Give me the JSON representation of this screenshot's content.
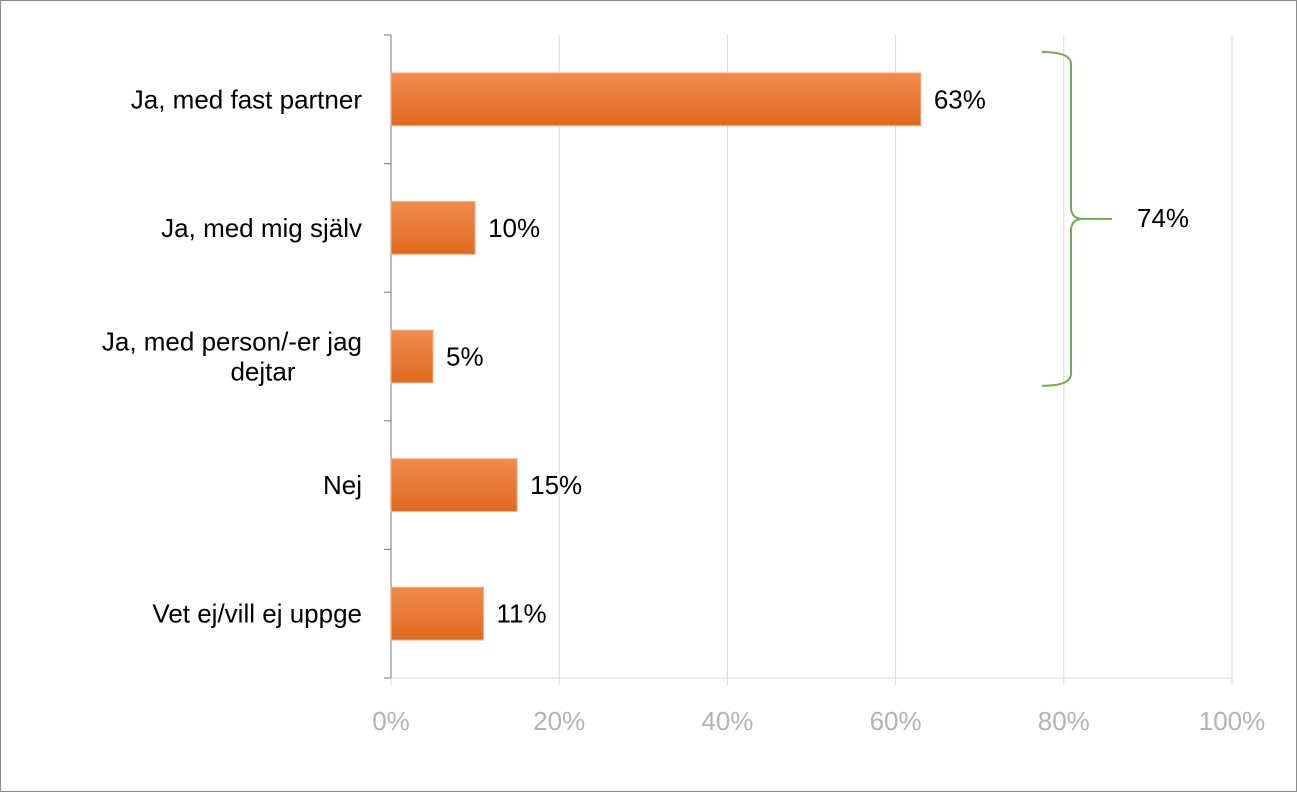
{
  "chart_data": {
    "type": "bar",
    "orientation": "horizontal",
    "categories": [
      [
        "Ja, med fast partner"
      ],
      [
        "Ja, med mig själv"
      ],
      [
        "Ja, med person/-er jag",
        "dejtar"
      ],
      [
        "Nej"
      ],
      [
        "Vet ej/vill ej uppge"
      ]
    ],
    "values": [
      63,
      10,
      5,
      15,
      11
    ],
    "value_labels": [
      "63%",
      "10%",
      "5%",
      "15%",
      "11%"
    ],
    "xlim": [
      0,
      100
    ],
    "x_ticks": [
      0,
      20,
      40,
      60,
      80,
      100
    ],
    "x_tick_labels": [
      "0%",
      "20%",
      "40%",
      "60%",
      "80%",
      "100%"
    ],
    "grid": "vertical",
    "bar_color": "#e8732d",
    "grid_color": "#d9d9d9",
    "bracket": {
      "label": "74%",
      "spans_categories": [
        0,
        1,
        2
      ],
      "color": "#70ad47"
    }
  }
}
